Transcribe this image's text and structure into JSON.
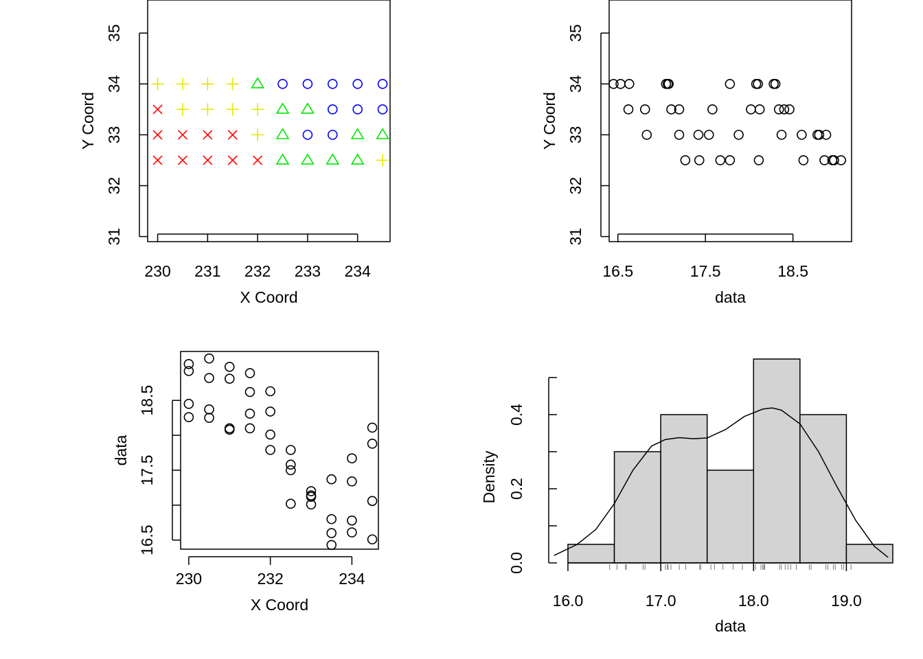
{
  "chart_data": [
    {
      "type": "scatter",
      "xlabel": "X Coord",
      "ylabel": "Y Coord",
      "xlim": [
        229.8,
        234.65
      ],
      "ylim": [
        30.9,
        35.65
      ],
      "xticks": [
        230,
        231,
        232,
        233,
        234
      ],
      "xtick_labels": [
        "230",
        "231",
        "232",
        "233",
        "234"
      ],
      "yticks": [
        31,
        32,
        33,
        34,
        35
      ],
      "ytick_labels": [
        "31",
        "32",
        "33",
        "34",
        "35"
      ],
      "colors": {
        "red": "#ff0000",
        "yellow": "#e6e600",
        "green": "#00e600",
        "blue": "#0000ff"
      },
      "points": [
        {
          "x": 230,
          "y": 34,
          "sym": "plus",
          "color": "yellow"
        },
        {
          "x": 230.5,
          "y": 34,
          "sym": "plus",
          "color": "yellow"
        },
        {
          "x": 231,
          "y": 34,
          "sym": "plus",
          "color": "yellow"
        },
        {
          "x": 231.5,
          "y": 34,
          "sym": "plus",
          "color": "yellow"
        },
        {
          "x": 232,
          "y": 34,
          "sym": "triangle",
          "color": "green"
        },
        {
          "x": 232.5,
          "y": 34,
          "sym": "circle",
          "color": "blue"
        },
        {
          "x": 233,
          "y": 34,
          "sym": "circle",
          "color": "blue"
        },
        {
          "x": 233.5,
          "y": 34,
          "sym": "circle",
          "color": "blue"
        },
        {
          "x": 234,
          "y": 34,
          "sym": "circle",
          "color": "blue"
        },
        {
          "x": 234.5,
          "y": 34,
          "sym": "circle",
          "color": "blue"
        },
        {
          "x": 230,
          "y": 33.5,
          "sym": "cross",
          "color": "red"
        },
        {
          "x": 230.5,
          "y": 33.5,
          "sym": "plus",
          "color": "yellow"
        },
        {
          "x": 231,
          "y": 33.5,
          "sym": "plus",
          "color": "yellow"
        },
        {
          "x": 231.5,
          "y": 33.5,
          "sym": "plus",
          "color": "yellow"
        },
        {
          "x": 232,
          "y": 33.5,
          "sym": "plus",
          "color": "yellow"
        },
        {
          "x": 232.5,
          "y": 33.5,
          "sym": "triangle",
          "color": "green"
        },
        {
          "x": 233,
          "y": 33.5,
          "sym": "triangle",
          "color": "green"
        },
        {
          "x": 233.5,
          "y": 33.5,
          "sym": "circle",
          "color": "blue"
        },
        {
          "x": 234,
          "y": 33.5,
          "sym": "circle",
          "color": "blue"
        },
        {
          "x": 234.5,
          "y": 33.5,
          "sym": "circle",
          "color": "blue"
        },
        {
          "x": 230,
          "y": 33,
          "sym": "cross",
          "color": "red"
        },
        {
          "x": 230.5,
          "y": 33,
          "sym": "cross",
          "color": "red"
        },
        {
          "x": 231,
          "y": 33,
          "sym": "cross",
          "color": "red"
        },
        {
          "x": 231.5,
          "y": 33,
          "sym": "cross",
          "color": "red"
        },
        {
          "x": 232,
          "y": 33,
          "sym": "plus",
          "color": "yellow"
        },
        {
          "x": 232.5,
          "y": 33,
          "sym": "triangle",
          "color": "green"
        },
        {
          "x": 233,
          "y": 33,
          "sym": "circle",
          "color": "blue"
        },
        {
          "x": 233.5,
          "y": 33,
          "sym": "circle",
          "color": "blue"
        },
        {
          "x": 234,
          "y": 33,
          "sym": "triangle",
          "color": "green"
        },
        {
          "x": 234.5,
          "y": 33,
          "sym": "triangle",
          "color": "green"
        },
        {
          "x": 230,
          "y": 32.5,
          "sym": "cross",
          "color": "red"
        },
        {
          "x": 230.5,
          "y": 32.5,
          "sym": "cross",
          "color": "red"
        },
        {
          "x": 231,
          "y": 32.5,
          "sym": "cross",
          "color": "red"
        },
        {
          "x": 231.5,
          "y": 32.5,
          "sym": "cross",
          "color": "red"
        },
        {
          "x": 232,
          "y": 32.5,
          "sym": "cross",
          "color": "red"
        },
        {
          "x": 232.5,
          "y": 32.5,
          "sym": "triangle",
          "color": "green"
        },
        {
          "x": 233,
          "y": 32.5,
          "sym": "triangle",
          "color": "green"
        },
        {
          "x": 233.5,
          "y": 32.5,
          "sym": "triangle",
          "color": "green"
        },
        {
          "x": 234,
          "y": 32.5,
          "sym": "triangle",
          "color": "green"
        },
        {
          "x": 234.5,
          "y": 32.5,
          "sym": "plus",
          "color": "yellow"
        }
      ]
    },
    {
      "type": "scatter",
      "xlabel": "data",
      "ylabel": "Y Coord",
      "xlim": [
        16.4,
        19.17
      ],
      "ylim": [
        30.9,
        35.65
      ],
      "xticks": [
        16.5,
        17.5,
        18.5
      ],
      "xtick_labels": [
        "16.5",
        "17.5",
        "18.5"
      ],
      "yticks": [
        31,
        32,
        33,
        34,
        35
      ],
      "ytick_labels": [
        "31",
        "32",
        "33",
        "34",
        "35"
      ],
      "points": [
        {
          "x": 16.45,
          "y": 34
        },
        {
          "x": 16.53,
          "y": 34
        },
        {
          "x": 16.63,
          "y": 34
        },
        {
          "x": 17.05,
          "y": 34
        },
        {
          "x": 17.07,
          "y": 34
        },
        {
          "x": 17.08,
          "y": 34
        },
        {
          "x": 17.78,
          "y": 34
        },
        {
          "x": 18.08,
          "y": 34
        },
        {
          "x": 18.1,
          "y": 34
        },
        {
          "x": 18.28,
          "y": 34
        },
        {
          "x": 18.3,
          "y": 34
        },
        {
          "x": 16.62,
          "y": 33.5
        },
        {
          "x": 16.81,
          "y": 33.5
        },
        {
          "x": 17.11,
          "y": 33.5
        },
        {
          "x": 17.2,
          "y": 33.5
        },
        {
          "x": 17.58,
          "y": 33.5
        },
        {
          "x": 18.02,
          "y": 33.5
        },
        {
          "x": 18.12,
          "y": 33.5
        },
        {
          "x": 18.34,
          "y": 33.5
        },
        {
          "x": 18.4,
          "y": 33.5
        },
        {
          "x": 18.46,
          "y": 33.5
        },
        {
          "x": 16.83,
          "y": 33
        },
        {
          "x": 17.2,
          "y": 33
        },
        {
          "x": 17.42,
          "y": 33
        },
        {
          "x": 17.54,
          "y": 33
        },
        {
          "x": 17.88,
          "y": 33
        },
        {
          "x": 18.37,
          "y": 33
        },
        {
          "x": 18.6,
          "y": 33
        },
        {
          "x": 18.78,
          "y": 33
        },
        {
          "x": 18.8,
          "y": 33
        },
        {
          "x": 18.88,
          "y": 33
        },
        {
          "x": 17.27,
          "y": 32.5
        },
        {
          "x": 17.43,
          "y": 32.5
        },
        {
          "x": 17.67,
          "y": 32.5
        },
        {
          "x": 17.78,
          "y": 32.5
        },
        {
          "x": 18.11,
          "y": 32.5
        },
        {
          "x": 18.62,
          "y": 32.5
        },
        {
          "x": 18.86,
          "y": 32.5
        },
        {
          "x": 18.95,
          "y": 32.5
        },
        {
          "x": 18.97,
          "y": 32.5
        },
        {
          "x": 19.05,
          "y": 32.5
        }
      ]
    },
    {
      "type": "scatter",
      "xlabel": "X Coord",
      "ylabel": "data",
      "xlim": [
        229.8,
        234.65
      ],
      "ylim": [
        16.37,
        19.2
      ],
      "xticks": [
        230,
        232,
        234
      ],
      "xtick_labels": [
        "230",
        "232",
        "234"
      ],
      "yticks": [
        16.5,
        17,
        17.5,
        18,
        18.5
      ],
      "ytick_labels": [
        "16.5",
        "",
        "17.5",
        "",
        "18.5"
      ],
      "points": [
        {
          "x": 230,
          "y": 19.02
        },
        {
          "x": 230,
          "y": 18.92
        },
        {
          "x": 230,
          "y": 18.45
        },
        {
          "x": 230,
          "y": 18.26
        },
        {
          "x": 230.5,
          "y": 19.1
        },
        {
          "x": 230.5,
          "y": 18.82
        },
        {
          "x": 230.5,
          "y": 18.37
        },
        {
          "x": 230.5,
          "y": 18.25
        },
        {
          "x": 231,
          "y": 18.98
        },
        {
          "x": 231,
          "y": 18.81
        },
        {
          "x": 231,
          "y": 18.1
        },
        {
          "x": 231,
          "y": 18.08
        },
        {
          "x": 231.5,
          "y": 18.89
        },
        {
          "x": 231.5,
          "y": 18.62
        },
        {
          "x": 231.5,
          "y": 18.31
        },
        {
          "x": 231.5,
          "y": 18.1
        },
        {
          "x": 232,
          "y": 18.63
        },
        {
          "x": 232,
          "y": 18.34
        },
        {
          "x": 232,
          "y": 18.01
        },
        {
          "x": 232,
          "y": 17.79
        },
        {
          "x": 232.5,
          "y": 17.79
        },
        {
          "x": 232.5,
          "y": 17.58
        },
        {
          "x": 232.5,
          "y": 17.5
        },
        {
          "x": 232.5,
          "y": 17.02
        },
        {
          "x": 233,
          "y": 17.2
        },
        {
          "x": 233,
          "y": 17.14
        },
        {
          "x": 233,
          "y": 17.12
        },
        {
          "x": 233,
          "y": 17.01
        },
        {
          "x": 233.5,
          "y": 17.37
        },
        {
          "x": 233.5,
          "y": 16.8
        },
        {
          "x": 233.5,
          "y": 16.6
        },
        {
          "x": 233.5,
          "y": 16.43
        },
        {
          "x": 234,
          "y": 17.67
        },
        {
          "x": 234,
          "y": 17.34
        },
        {
          "x": 234,
          "y": 16.78
        },
        {
          "x": 234,
          "y": 16.61
        },
        {
          "x": 234.5,
          "y": 18.11
        },
        {
          "x": 234.5,
          "y": 17.88
        },
        {
          "x": 234.5,
          "y": 17.06
        },
        {
          "x": 234.5,
          "y": 16.51
        }
      ]
    },
    {
      "type": "bar",
      "subtype": "histogram",
      "xlabel": "data",
      "ylabel": "Density",
      "xlim": [
        15.83,
        19.5
      ],
      "ylim": [
        0,
        0.5
      ],
      "xticks": [
        16,
        17,
        18,
        19
      ],
      "xtick_labels": [
        "16.0",
        "17.0",
        "18.0",
        "19.0"
      ],
      "yticks": [
        0,
        0.1,
        0.2,
        0.3,
        0.4,
        0.5
      ],
      "ytick_labels": [
        "0.0",
        "",
        "0.2",
        "",
        "0.4",
        ""
      ],
      "bins": [
        {
          "from": 16,
          "to": 16.5,
          "density": 0.05
        },
        {
          "from": 16.5,
          "to": 17,
          "density": 0.3
        },
        {
          "from": 17,
          "to": 17.5,
          "density": 0.4
        },
        {
          "from": 17.5,
          "to": 18,
          "density": 0.25
        },
        {
          "from": 18,
          "to": 18.5,
          "density": 0.55
        },
        {
          "from": 18.5,
          "to": 19,
          "density": 0.4
        },
        {
          "from": 19,
          "to": 19.5,
          "density": 0.05
        }
      ],
      "bar_fill": "#d3d3d3",
      "density_curve": {
        "x": [
          15.85,
          16.1,
          16.3,
          16.5,
          16.7,
          16.9,
          17.05,
          17.2,
          17.35,
          17.5,
          17.7,
          17.9,
          18.1,
          18.2,
          18.3,
          18.5,
          18.7,
          18.9,
          19.1,
          19.3,
          19.45
        ],
        "y": [
          0.02,
          0.05,
          0.09,
          0.16,
          0.25,
          0.315,
          0.333,
          0.338,
          0.335,
          0.337,
          0.36,
          0.395,
          0.415,
          0.418,
          0.412,
          0.375,
          0.3,
          0.205,
          0.115,
          0.045,
          0.015
        ]
      },
      "rug": [
        16.45,
        16.53,
        16.63,
        16.62,
        16.81,
        16.83,
        17.05,
        17.07,
        17.08,
        17.11,
        17.2,
        17.27,
        17.42,
        17.43,
        17.54,
        17.58,
        17.67,
        17.78,
        17.88,
        18.02,
        18.08,
        18.1,
        18.11,
        18.12,
        18.28,
        18.3,
        18.34,
        18.37,
        18.4,
        18.46,
        18.6,
        18.62,
        18.78,
        18.8,
        18.86,
        18.88,
        18.95,
        18.97,
        19.05
      ]
    }
  ]
}
